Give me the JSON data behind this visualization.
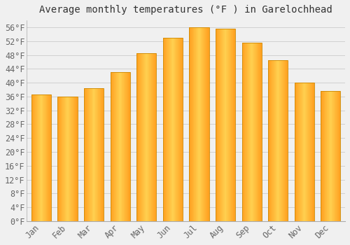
{
  "title": "Average monthly temperatures (°F ) in Garelochhead",
  "months": [
    "Jan",
    "Feb",
    "Mar",
    "Apr",
    "May",
    "Jun",
    "Jul",
    "Aug",
    "Sep",
    "Oct",
    "Nov",
    "Dec"
  ],
  "values": [
    36.5,
    36.0,
    38.5,
    43.0,
    48.5,
    53.0,
    56.0,
    55.5,
    51.5,
    46.5,
    40.0,
    37.5
  ],
  "bar_color_left": "#FFA020",
  "bar_color_center": "#FFD050",
  "bar_color_right": "#FFA020",
  "bar_edge_color": "#CC8800",
  "background_color": "#F0F0F0",
  "grid_color": "#CCCCCC",
  "text_color": "#666666",
  "title_color": "#333333",
  "ylim": [
    0,
    58
  ],
  "yticks": [
    0,
    4,
    8,
    12,
    16,
    20,
    24,
    28,
    32,
    36,
    40,
    44,
    48,
    52,
    56
  ],
  "title_fontsize": 10,
  "tick_fontsize": 8.5
}
